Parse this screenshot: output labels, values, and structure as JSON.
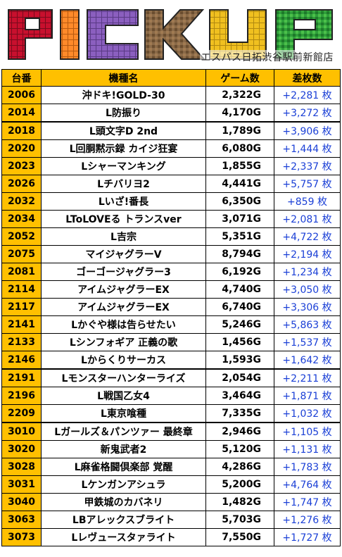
{
  "banner": {
    "title": "PICKUP",
    "subtitle": "エスパス日拓渋谷駅前新館店"
  },
  "table": {
    "headers": [
      "台番",
      "機種名",
      "ゲーム数",
      "差枚数"
    ],
    "rows": [
      {
        "num": "2006",
        "name": "沖ドキ!GOLD-30",
        "games": "2,322G",
        "diff": "+2,281 枚"
      },
      {
        "num": "2014",
        "name": "L防振り",
        "games": "4,170G",
        "diff": "+3,272 枚"
      },
      {
        "num": "2018",
        "name": "L頭文字D 2nd",
        "games": "1,789G",
        "diff": "+3,906 枚"
      },
      {
        "num": "2020",
        "name": "L回胴黙示録 カイジ狂宴",
        "games": "6,080G",
        "diff": "+1,444 枚"
      },
      {
        "num": "2023",
        "name": "Lシャーマンキング",
        "games": "1,855G",
        "diff": "+2,337 枚"
      },
      {
        "num": "2026",
        "name": "Lチバリヨ2",
        "games": "4,441G",
        "diff": "+5,757 枚"
      },
      {
        "num": "2032",
        "name": "Lいざ!番長",
        "games": "6,350G",
        "diff": "+859 枚"
      },
      {
        "num": "2034",
        "name": "LToLOVEる トランスver",
        "games": "3,071G",
        "diff": "+2,081 枚"
      },
      {
        "num": "2052",
        "name": "L吉宗",
        "games": "5,351G",
        "diff": "+4,722 枚"
      },
      {
        "num": "2075",
        "name": "マイジャグラーV",
        "games": "8,794G",
        "diff": "+2,194 枚"
      },
      {
        "num": "2081",
        "name": "ゴーゴージャグラー3",
        "games": "6,192G",
        "diff": "+1,234 枚"
      },
      {
        "num": "2114",
        "name": "アイムジャグラーEX",
        "games": "4,740G",
        "diff": "+3,050 枚"
      },
      {
        "num": "2117",
        "name": "アイムジャグラーEX",
        "games": "6,740G",
        "diff": "+3,306 枚"
      },
      {
        "num": "2141",
        "name": "Lかぐや様は告らせたい",
        "games": "5,246G",
        "diff": "+5,863 枚"
      },
      {
        "num": "2133",
        "name": "Lシンフォギア 正義の歌",
        "games": "1,456G",
        "diff": "+1,537 枚"
      },
      {
        "num": "2146",
        "name": "Lからくりサーカス",
        "games": "1,593G",
        "diff": "+1,642 枚"
      },
      {
        "num": "2191",
        "name": "Lモンスターハンターライズ",
        "games": "2,054G",
        "diff": "+2,211 枚"
      },
      {
        "num": "2196",
        "name": "L戦国乙女4",
        "games": "3,464G",
        "diff": "+1,871 枚"
      },
      {
        "num": "2209",
        "name": "L東京喰種",
        "games": "7,335G",
        "diff": "+1,032 枚"
      },
      {
        "num": "3010",
        "name": "Lガールズ＆パンツァー 最終章",
        "games": "2,946G",
        "diff": "+1,105 枚"
      },
      {
        "num": "3020",
        "name": "新鬼武者2",
        "games": "5,120G",
        "diff": "+1,131 枚"
      },
      {
        "num": "3028",
        "name": "L麻雀格闘倶楽部 覚醒",
        "games": "4,286G",
        "diff": "+1,783 枚"
      },
      {
        "num": "3031",
        "name": "Lケンガンアシュラ",
        "games": "5,200G",
        "diff": "+4,764 枚"
      },
      {
        "num": "3040",
        "name": "甲鉄城のカバネリ",
        "games": "1,482G",
        "diff": "+1,747 枚"
      },
      {
        "num": "3063",
        "name": "LBアレックスブライト",
        "games": "5,703G",
        "diff": "+1,276 枚"
      },
      {
        "num": "3073",
        "name": "Lレヴュースタァライト",
        "games": "7,550G",
        "diff": "+1,727 枚"
      }
    ]
  },
  "colors": {
    "header_bg": "#ffc000",
    "diff_text": "#1a3fd6",
    "letter_p": "#c8102e",
    "letter_i": "#ff8a2a",
    "letter_c": "#8b5fbf",
    "letter_k": "#7a5a3a",
    "letter_u": "#f0c020",
    "letter_p2": "#2e9e3a"
  }
}
